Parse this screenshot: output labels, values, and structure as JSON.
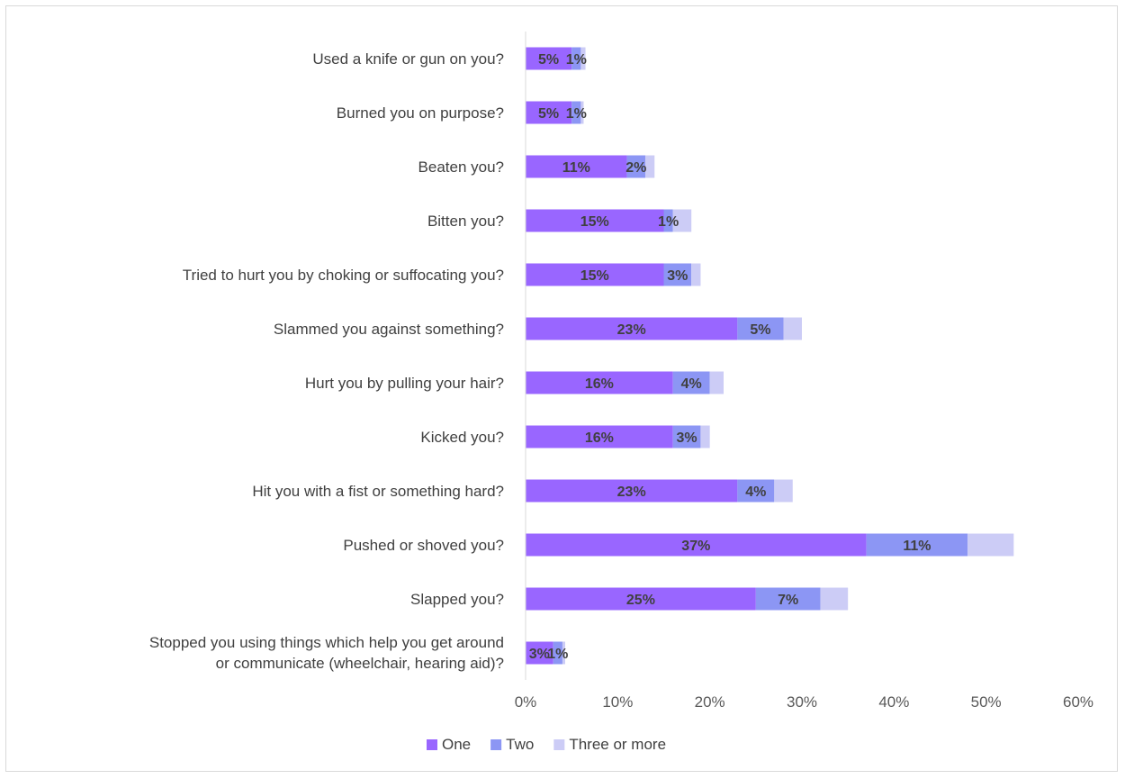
{
  "chart_data": {
    "type": "bar",
    "orientation": "horizontal",
    "stacked": true,
    "categories": [
      "Used a knife or gun on you?",
      "Burned you on purpose?",
      "Beaten you?",
      "Bitten you?",
      "Tried to hurt you by choking or suffocating you?",
      "Slammed you against something?",
      "Hurt you by pulling your hair?",
      "Kicked you?",
      "Hit you with a fist or something hard?",
      "Pushed or shoved you?",
      "Slapped you?",
      "Stopped you using things which help you get around or communicate (wheelchair, hearing aid)?"
    ],
    "series": [
      {
        "name": "One",
        "color": "#9966ff",
        "values": [
          5,
          5,
          11,
          15,
          15,
          23,
          16,
          16,
          23,
          37,
          25,
          3
        ],
        "labels": [
          "5%",
          "5%",
          "11%",
          "15%",
          "15%",
          "23%",
          "16%",
          "16%",
          "23%",
          "37%",
          "25%",
          "3%"
        ]
      },
      {
        "name": "Two",
        "color": "#8c96f4",
        "values": [
          1,
          1,
          2,
          1,
          3,
          5,
          4,
          3,
          4,
          11,
          7,
          1
        ],
        "labels": [
          "1%",
          "1%",
          "2%",
          "1%",
          "3%",
          "5%",
          "4%",
          "3%",
          "4%",
          "11%",
          "7%",
          "1%"
        ]
      },
      {
        "name": "Three or more",
        "color": "#ccccf6",
        "values": [
          0.5,
          0.3,
          1,
          2,
          1,
          2,
          1.5,
          1,
          2,
          5,
          3,
          0.3
        ],
        "labels": []
      }
    ],
    "xlim": [
      0,
      60
    ],
    "x_ticks": [
      "0%",
      "10%",
      "20%",
      "30%",
      "40%",
      "50%",
      "60%"
    ],
    "title": "",
    "xlabel": "",
    "ylabel": "",
    "grid": false,
    "legend": "bottom"
  }
}
